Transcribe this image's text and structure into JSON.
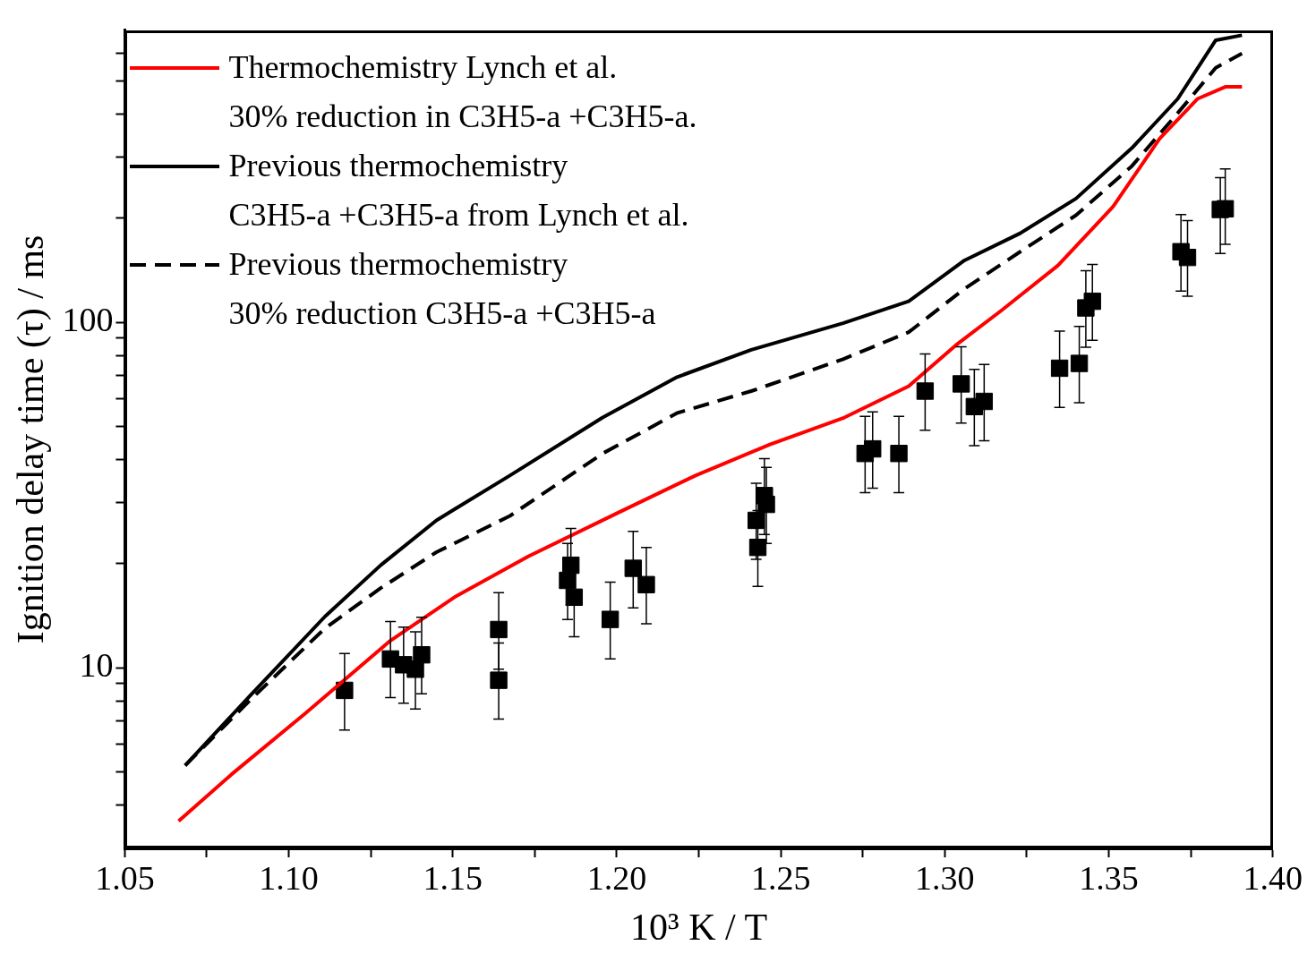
{
  "chart_data": {
    "type": "line",
    "xlabel": "10³ K / T",
    "ylabel": "Ignition delay time (τ) / ms",
    "log": "y",
    "grid": false,
    "legend": "top left",
    "xlim": [
      1.05,
      1.4
    ],
    "xticks": [
      {
        "value": 1.05,
        "label": "1.05"
      },
      {
        "value": 1.075,
        "label": null
      },
      {
        "value": 1.1,
        "label": "1.10"
      },
      {
        "value": 1.125,
        "label": null
      },
      {
        "value": 1.15,
        "label": "1.15"
      },
      {
        "value": 1.175,
        "label": null
      },
      {
        "value": 1.2,
        "label": "1.20"
      },
      {
        "value": 1.225,
        "label": null
      },
      {
        "value": 1.25,
        "label": "1.25"
      },
      {
        "value": 1.275,
        "label": null
      },
      {
        "value": 1.3,
        "label": "1.30"
      },
      {
        "value": 1.325,
        "label": null
      },
      {
        "value": 1.35,
        "label": "1.35"
      },
      {
        "value": 1.375,
        "label": null
      },
      {
        "value": 1.4,
        "label": "1.40"
      }
    ],
    "ylim": [
      3,
      700
    ],
    "yticks": [
      {
        "value": 4,
        "label": null
      },
      {
        "value": 5,
        "label": null
      },
      {
        "value": 6,
        "label": null
      },
      {
        "value": 7,
        "label": null
      },
      {
        "value": 8,
        "label": null
      },
      {
        "value": 9,
        "label": null
      },
      10,
      {
        "value": 20,
        "label": null
      },
      {
        "value": 30,
        "label": null
      },
      {
        "value": 40,
        "label": null
      },
      {
        "value": 50,
        "label": null
      },
      {
        "value": 60,
        "label": null
      },
      {
        "value": 70,
        "label": null
      },
      {
        "value": 80,
        "label": null
      },
      {
        "value": 90,
        "label": null
      },
      100,
      {
        "value": 200,
        "label": null
      },
      {
        "value": 300,
        "label": null
      },
      {
        "value": 400,
        "label": null
      },
      {
        "value": 500,
        "label": null
      },
      {
        "value": 600,
        "label": null
      }
    ],
    "series": [
      {
        "name": "Thermochemistry Lynch et al.\n30% reduction in C3H5-a +C3H5-a.",
        "type": "line",
        "line_style": "solid",
        "color": "#ff0000",
        "x": [
          1.0664,
          1.0825,
          1.105,
          1.1306,
          1.1505,
          1.173,
          1.2014,
          1.224,
          1.2467,
          1.2694,
          1.289,
          1.3033,
          1.3175,
          1.3345,
          1.3513,
          1.3655,
          1.377,
          1.3855,
          1.3906
        ],
        "values": [
          3.6,
          4.91,
          7.37,
          11.9,
          16.0,
          21.0,
          28.4,
          36.0,
          44.3,
          53.0,
          65.3,
          85.7,
          108.6,
          146,
          216,
          340,
          443,
          480,
          480
        ]
      },
      {
        "name": "Previous thermochemistry\nC3H5-a +C3H5-a from Lynch et al.",
        "type": "line",
        "line_style": "solid",
        "color": "#000000",
        "x": [
          1.0684,
          1.0882,
          1.111,
          1.128,
          1.145,
          1.1674,
          1.1957,
          1.2184,
          1.241,
          1.269,
          1.289,
          1.306,
          1.323,
          1.34,
          1.357,
          1.371,
          1.3826,
          1.3906
        ],
        "values": [
          5.21,
          8.3,
          14.06,
          19.8,
          26.7,
          36.0,
          53.0,
          69.4,
          83.2,
          99.4,
          115,
          151,
          181,
          228,
          319,
          443,
          655,
          677
        ]
      },
      {
        "name": "Previous thermochemistry\n30% reduction C3H5-a +C3H5-a",
        "type": "line",
        "line_style": "dashed",
        "color": "#000000",
        "x": [
          1.0684,
          1.0882,
          1.111,
          1.128,
          1.145,
          1.1674,
          1.1957,
          1.2184,
          1.241,
          1.269,
          1.289,
          1.306,
          1.323,
          1.34,
          1.357,
          1.371,
          1.3826,
          1.3906
        ],
        "values": [
          5.21,
          8.06,
          13.0,
          17.0,
          21.6,
          27.5,
          41.7,
          54.6,
          63.2,
          78.2,
          93.6,
          125,
          160,
          204,
          283,
          403,
          545,
          600
        ]
      },
      {
        "type": "scatter",
        "marker": "square",
        "color": "#000000",
        "x": [
          1.117,
          1.131,
          1.135,
          1.1386,
          1.1405,
          1.164,
          1.164,
          1.185,
          1.186,
          1.187,
          1.198,
          1.205,
          1.209,
          1.2425,
          1.243,
          1.245,
          1.2456,
          1.2757,
          1.278,
          1.286,
          1.294,
          1.305,
          1.309,
          1.312,
          1.335,
          1.341,
          1.343,
          1.345,
          1.372,
          1.374,
          1.384,
          1.3855
        ],
        "values": [
          8.6,
          10.6,
          10.2,
          9.9,
          10.9,
          12.9,
          9.2,
          17.9,
          19.8,
          16.0,
          13.8,
          19.4,
          17.4,
          26.7,
          22.3,
          31.5,
          29.7,
          41.7,
          43.0,
          41.7,
          63.2,
          66.3,
          57.0,
          59.0,
          73.6,
          76.0,
          110,
          115,
          160,
          154,
          212,
          213
        ],
        "errors": [
          [
            6.6,
            11.0
          ],
          [
            8.2,
            13.6
          ],
          [
            7.9,
            13.1
          ],
          [
            7.6,
            12.7
          ],
          [
            8.4,
            14.0
          ],
          [
            9.9,
            16.5
          ],
          [
            7.1,
            11.8
          ],
          [
            13.8,
            22.9
          ],
          [
            15.2,
            25.3
          ],
          [
            12.3,
            16.0
          ],
          [
            10.6,
            17.7
          ],
          [
            14.9,
            24.8
          ],
          [
            13.4,
            22.3
          ],
          [
            20.6,
            34.2
          ],
          [
            17.2,
            28.5
          ],
          [
            24.3,
            40.3
          ],
          [
            22.9,
            38.0
          ],
          [
            32.1,
            53.4
          ],
          [
            33.1,
            55.0
          ],
          [
            32.1,
            53.4
          ],
          [
            48.7,
            80.9
          ],
          [
            51.1,
            84.9
          ],
          [
            43.9,
            73.0
          ],
          [
            45.4,
            75.5
          ],
          [
            56.7,
            94.2
          ],
          [
            58.5,
            97.3
          ],
          [
            84.7,
            141
          ],
          [
            88.6,
            147
          ],
          [
            123,
            205
          ],
          [
            119,
            197
          ],
          [
            158,
            262
          ],
          [
            168,
            278
          ]
        ]
      }
    ]
  }
}
